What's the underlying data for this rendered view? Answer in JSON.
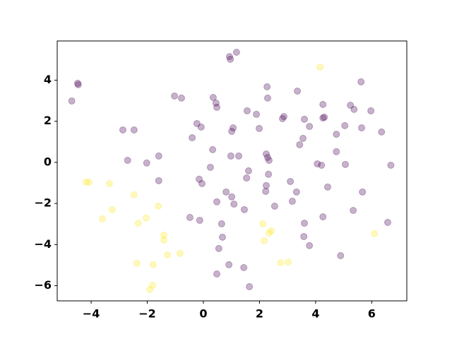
{
  "chart_data": {
    "type": "scatter",
    "xlim": [
      -5.21,
      7.25
    ],
    "ylim": [
      -6.74,
      5.91
    ],
    "xticks": [
      {
        "value": -4,
        "label": "−4"
      },
      {
        "value": -2,
        "label": "−2"
      },
      0,
      2,
      4,
      6
    ],
    "yticks": [
      {
        "value": -6,
        "label": "−6"
      },
      {
        "value": -4,
        "label": "−4"
      },
      {
        "value": -2,
        "label": "−2"
      },
      0,
      2,
      4
    ],
    "opacity": 0.3,
    "series": [
      {
        "color": "#440154",
        "x": [
          -4.48,
          -4.46,
          -4.69,
          -2.87,
          -2.47,
          -2.7,
          -2.02,
          -1.59,
          -1.59,
          -1.03,
          -0.78,
          -0.4,
          -0.23,
          -0.08,
          0.25,
          0.33,
          -0.15,
          -0.05,
          -0.48,
          -0.13,
          0.35,
          0.45,
          0.48,
          0.48,
          0.93,
          0.96,
          1.18,
          1.01,
          1.06,
          0.98,
          1.26,
          0.81,
          1.01,
          1.09,
          0.65,
          0.68,
          0.55,
          0.48,
          0.91,
          1.44,
          1.64,
          1.46,
          1.54,
          1.61,
          1.56,
          1.89,
          1.99,
          2.27,
          2.29,
          2.24,
          2.29,
          2.34,
          2.32,
          2.24,
          2.22,
          2.54,
          2.82,
          2.87,
          3.1,
          3.35,
          3.32,
          3.17,
          3.43,
          3.55,
          3.6,
          3.78,
          3.6,
          3.58,
          3.78,
          4.06,
          4.21,
          4.26,
          4.26,
          4.31,
          4.43,
          4.26,
          4.74,
          4.74,
          5.04,
          5.06,
          5.24,
          5.37,
          5.34,
          4.89,
          5.62,
          5.64,
          5.67,
          5.97,
          6.35,
          6.57,
          6.68
        ],
        "values": [
          3.85,
          3.78,
          2.99,
          1.58,
          1.58,
          0.1,
          -0.03,
          0.31,
          -0.89,
          3.23,
          3.13,
          1.2,
          1.89,
          1.72,
          -0.24,
          0.62,
          -0.82,
          -1.03,
          -2.68,
          -2.82,
          3.16,
          2.89,
          2.68,
          -1.92,
          5.15,
          5.02,
          5.36,
          1.51,
          1.68,
          0.31,
          0.31,
          -1.44,
          -1.68,
          -2.03,
          -2.99,
          -3.64,
          -4.19,
          -5.43,
          -4.98,
          -5.12,
          -6.05,
          -2.3,
          -0.76,
          -0.41,
          2.51,
          2.34,
          1.65,
          3.68,
          3.13,
          0.41,
          0.24,
          0.1,
          -0.58,
          -1.13,
          -1.41,
          -2.13,
          2.13,
          2.23,
          -0.93,
          3.47,
          -1.44,
          -1.89,
          0.86,
          1.17,
          2.1,
          1.75,
          -2.96,
          -3.61,
          -4.05,
          -0.07,
          -0.14,
          2.82,
          2.16,
          2.2,
          -1.2,
          -2.65,
          1.37,
          0.52,
          1.79,
          -0.1,
          2.78,
          2.58,
          -2.34,
          -4.54,
          3.92,
          1.68,
          -1.44,
          2.51,
          1.48,
          -2.92,
          -0.14
        ]
      },
      {
        "color": "#fde725",
        "x": [
          -4.18,
          -4.08,
          -3.35,
          -3.25,
          -3.6,
          -2.47,
          -2.32,
          -2.37,
          -2.04,
          -1.61,
          -1.41,
          -1.41,
          -1.28,
          -1.79,
          -1.81,
          -1.91,
          -0.83,
          2.12,
          2.17,
          2.34,
          2.42,
          2.75,
          3.02,
          4.16,
          6.1
        ],
        "values": [
          -0.96,
          -0.96,
          -1.03,
          -2.3,
          -2.75,
          -1.58,
          -2.96,
          -4.91,
          -2.71,
          -2.13,
          -3.54,
          -3.78,
          -4.5,
          -4.98,
          -5.98,
          -6.19,
          -4.43,
          -2.99,
          -3.81,
          -3.44,
          -3.33,
          -4.88,
          -4.85,
          4.64,
          -3.47
        ]
      }
    ]
  }
}
